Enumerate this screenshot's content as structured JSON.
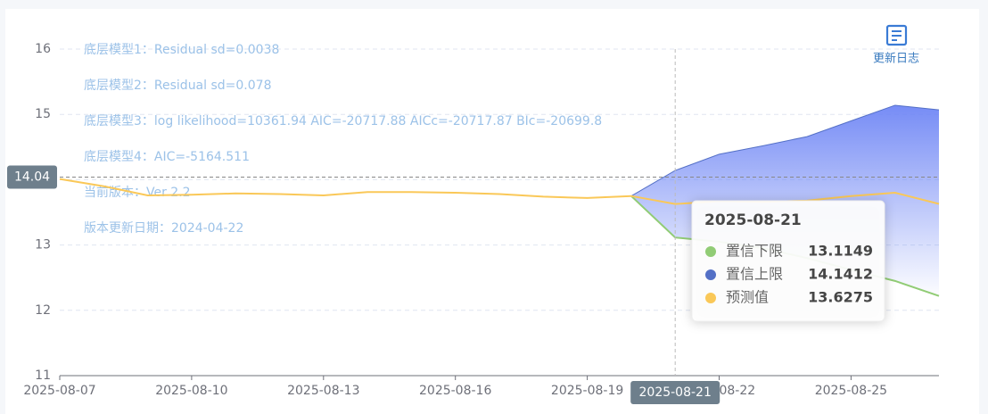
{
  "chart_data": {
    "type": "line",
    "annotations": [
      "底层模型1：Residual sd=0.0038",
      "底层模型2：Residual sd=0.078",
      "底层模型3：log likelihood=10361.94 AIC=-20717.88 AICc=-20717.87 BIc=-20699.8",
      "底层模型4：AIC=-5164.511",
      "当前版本：Ver 2.2",
      "版本更新日期：2024-04-22"
    ],
    "toolbox_label": "更新日志",
    "x": [
      "2025-08-07",
      "2025-08-08",
      "2025-08-09",
      "2025-08-10",
      "2025-08-11",
      "2025-08-12",
      "2025-08-13",
      "2025-08-14",
      "2025-08-15",
      "2025-08-16",
      "2025-08-17",
      "2025-08-18",
      "2025-08-19",
      "2025-08-20",
      "2025-08-21",
      "2025-08-22",
      "2025-08-23",
      "2025-08-24",
      "2025-08-25",
      "2025-08-26",
      "2025-08-27"
    ],
    "xtick_interval": 3,
    "series": [
      {
        "name": "置信下限",
        "color": "#91cc75",
        "values": [
          null,
          null,
          null,
          null,
          null,
          null,
          null,
          null,
          null,
          null,
          null,
          null,
          null,
          13.75,
          13.1149,
          13.05,
          12.95,
          12.8,
          12.62,
          12.45,
          12.22
        ]
      },
      {
        "name": "置信上限",
        "color": "#5470c6",
        "values": [
          null,
          null,
          null,
          null,
          null,
          null,
          null,
          null,
          null,
          null,
          null,
          null,
          null,
          13.75,
          14.1412,
          14.39,
          14.52,
          14.66,
          14.9,
          15.14,
          15.07
        ]
      },
      {
        "name": "预测值",
        "color": "#fac858",
        "values": [
          14.01,
          13.9,
          13.76,
          13.77,
          13.79,
          13.78,
          13.76,
          13.81,
          13.81,
          13.8,
          13.78,
          13.74,
          13.72,
          13.75,
          13.6275,
          13.67,
          13.66,
          13.68,
          13.75,
          13.8,
          13.63
        ]
      }
    ],
    "ylim": [
      11,
      16
    ],
    "yticks": [
      11,
      12,
      13,
      14,
      15,
      16
    ],
    "grid": true,
    "tooltip_index": 14,
    "pointer_y": 14.04
  }
}
